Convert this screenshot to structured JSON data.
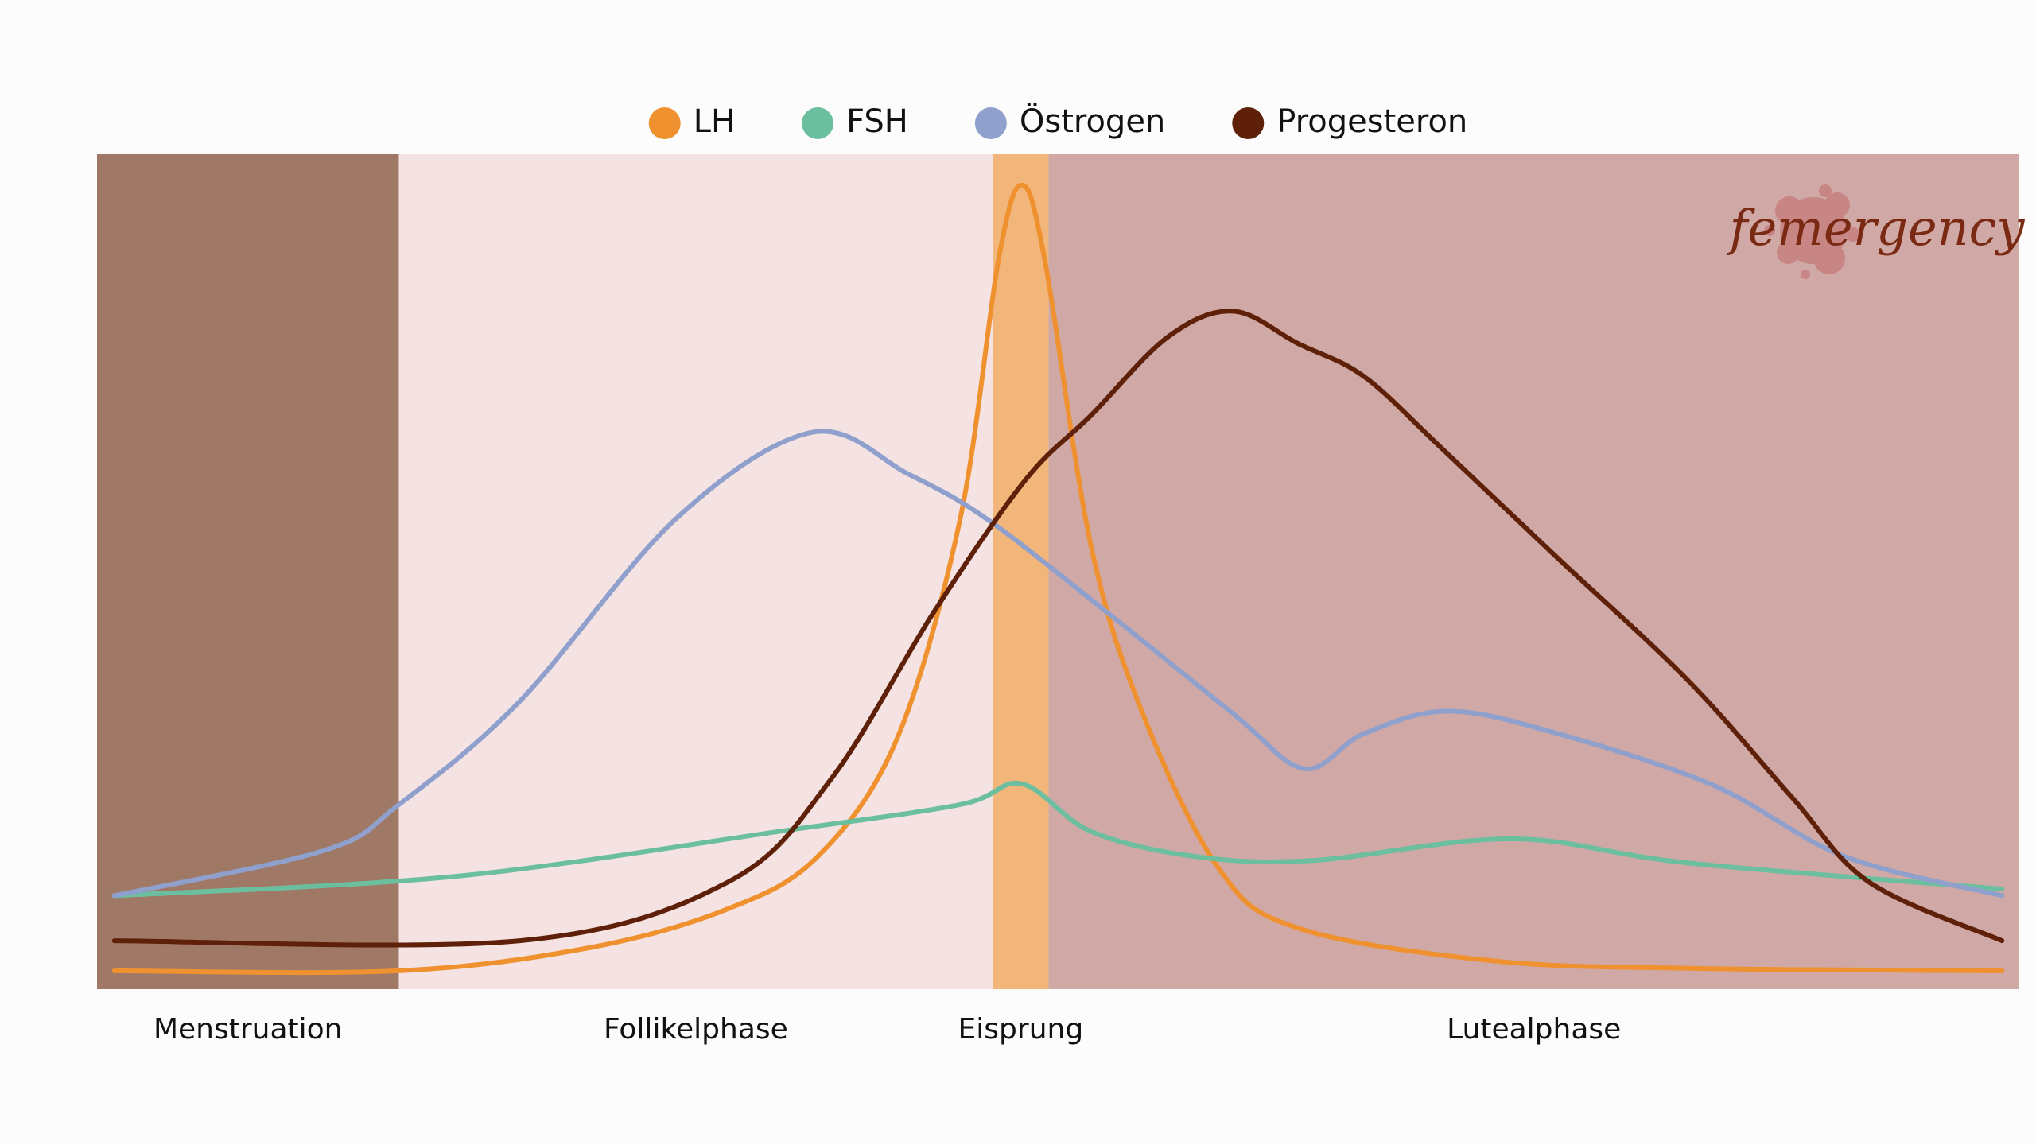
{
  "chart_data": {
    "type": "line",
    "legend_position": "top",
    "xlim": [
      0,
      100
    ],
    "ylim": [
      0,
      100
    ],
    "phases": [
      {
        "name": "Menstruation",
        "start": 0,
        "end": 15.7,
        "color": "#9f7965"
      },
      {
        "name": "Follikelphase",
        "start": 15.7,
        "end": 46.6,
        "color": "#f5e3e3"
      },
      {
        "name": "Eisprung",
        "start": 46.6,
        "end": 49.5,
        "color": "#f2b57a"
      },
      {
        "name": "Lutealphase",
        "start": 49.5,
        "end": 100,
        "color": "#d0a8a5"
      }
    ],
    "series": [
      {
        "name": "LH",
        "color": "#f0912f",
        "x": [
          0.9,
          15.7,
          25.7,
          32.8,
          37.5,
          41.6,
          44.9,
          46.9,
          48.1,
          49.3,
          51.7,
          54.4,
          58.4,
          62.5,
          72.6,
          82.8,
          99.1
        ],
        "values": [
          2.2,
          2.2,
          5.0,
          9.6,
          15.9,
          29.9,
          56.3,
          87.4,
          96.3,
          87.4,
          53.2,
          33.0,
          14.3,
          7.3,
          3.4,
          2.5,
          2.2
        ]
      },
      {
        "name": "FSH",
        "color": "#6bbf9f",
        "x": [
          0.9,
          18.6,
          35.5,
          44.9,
          48.1,
          51.7,
          57.1,
          63.2,
          73.6,
          82.8,
          99.1
        ],
        "values": [
          11.2,
          13.5,
          18.9,
          22.1,
          24.6,
          18.9,
          15.9,
          15.4,
          18.0,
          15.1,
          12.0
        ]
      },
      {
        "name": "Östrogen",
        "color": "#8fa0cc",
        "x": [
          0.9,
          11.8,
          15.7,
          22.0,
          30.1,
          37.2,
          42.2,
          46.3,
          52.4,
          59.1,
          62.8,
          65.9,
          70.3,
          76.0,
          84.1,
          90.9,
          99.1
        ],
        "values": [
          11.2,
          16.6,
          22.1,
          34.5,
          56.3,
          66.7,
          61.7,
          56.3,
          45.4,
          33.0,
          26.4,
          30.6,
          33.3,
          30.6,
          24.4,
          15.9,
          11.2
        ]
      },
      {
        "name": "Progesteron",
        "color": "#5e2008",
        "x": [
          0.9,
          22.0,
          32.8,
          38.2,
          43.6,
          48.3,
          51.7,
          55.7,
          59.1,
          62.5,
          65.9,
          69.9,
          76.0,
          82.8,
          88.2,
          92.2,
          99.1
        ],
        "values": [
          5.8,
          5.8,
          12.8,
          25.2,
          45.4,
          61.0,
          68.7,
          78.1,
          81.2,
          77.3,
          73.4,
          64.9,
          51.6,
          36.9,
          22.9,
          12.8,
          5.8
        ]
      }
    ]
  },
  "logo": "femergency"
}
